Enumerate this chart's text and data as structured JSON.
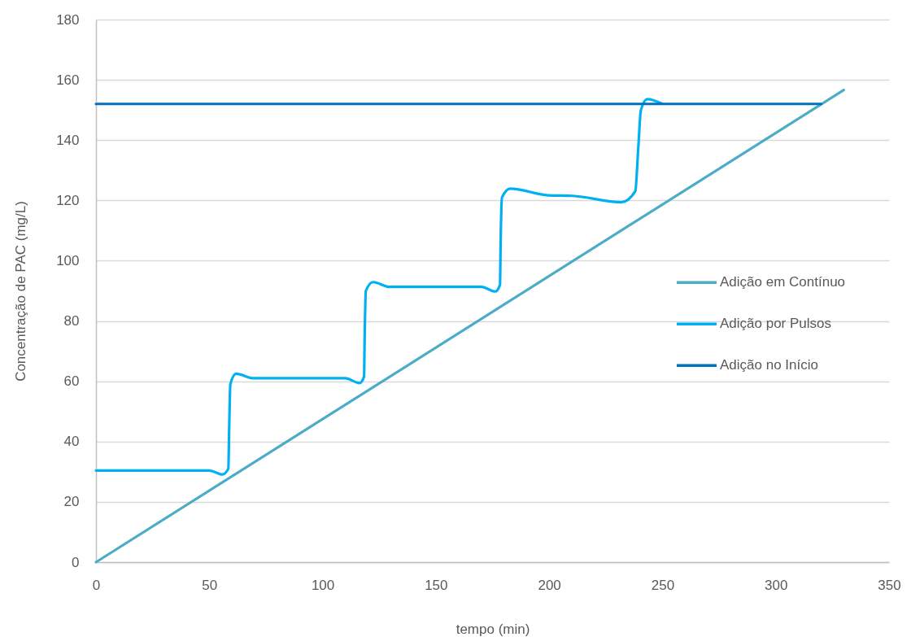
{
  "chart_data": {
    "type": "line",
    "xlabel": "tempo (min)",
    "ylabel": "Concentração de PAC (mg/L)",
    "xlim": [
      0,
      350
    ],
    "xticks": [
      0,
      50,
      100,
      150,
      200,
      250,
      300,
      350
    ],
    "ylim": [
      0,
      180
    ],
    "yticks": [
      0,
      20,
      40,
      60,
      80,
      100,
      120,
      140,
      160,
      180
    ],
    "grid": "y",
    "legend": "right",
    "series": [
      {
        "name": "Adição em Contínuo",
        "color": "#4bacc6",
        "x": [
          0,
          330
        ],
        "values": [
          0,
          156.6
        ]
      },
      {
        "name": "Adição por Pulsos",
        "color": "#00b0f0",
        "x": [
          0,
          50,
          55.8,
          58.4,
          58.8,
          59.3,
          61.8,
          69.6,
          110,
          116.3,
          118.3,
          118.6,
          119.1,
          122.3,
          129.5,
          170.2,
          176.2,
          178.3,
          178.6,
          179.2,
          182.8,
          199.6,
          210.3,
          231.9,
          238,
          239.3,
          240.5,
          243.3,
          249.8
        ],
        "values": [
          30.4,
          30.4,
          29.1,
          31,
          45,
          59,
          62.5,
          61,
          61,
          59.4,
          61.5,
          76,
          90,
          92.9,
          91.3,
          91.3,
          89.8,
          92,
          107,
          121,
          123.9,
          121.7,
          121.5,
          119.4,
          123,
          137,
          150,
          153.6,
          152.1
        ]
      },
      {
        "name": "Adição no Início",
        "color": "#0070c0",
        "x": [
          0,
          320
        ],
        "values": [
          152,
          152
        ]
      }
    ]
  }
}
